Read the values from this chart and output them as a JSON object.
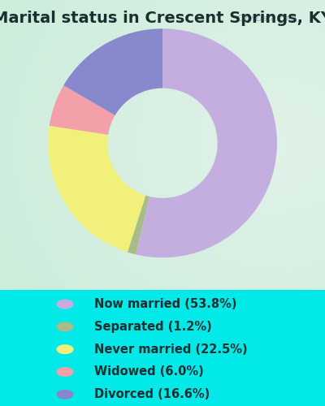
{
  "title": "Marital status in Crescent Springs, KY",
  "categories": [
    "Now married",
    "Separated",
    "Never married",
    "Widowed",
    "Divorced"
  ],
  "values": [
    53.8,
    1.2,
    22.5,
    6.0,
    16.6
  ],
  "colors": [
    "#c4aee0",
    "#a8bc8a",
    "#f0f07a",
    "#f4a0a8",
    "#8888cc"
  ],
  "legend_colors": [
    "#c4aee0",
    "#a8bc8a",
    "#f0f07a",
    "#f4a0a8",
    "#8888cc"
  ],
  "legend_labels": [
    "Now married (53.8%)",
    "Separated (1.2%)",
    "Never married (22.5%)",
    "Widowed (6.0%)",
    "Divorced (16.6%)"
  ],
  "bg_color": "#00e8e8",
  "chart_bg_left": "#c8ecd8",
  "chart_bg_right": "#e8f4ee",
  "watermark": "City-Data.com",
  "title_fontsize": 14,
  "legend_fontsize": 10.5,
  "text_color": "#1a3030",
  "donut_width": 0.52
}
